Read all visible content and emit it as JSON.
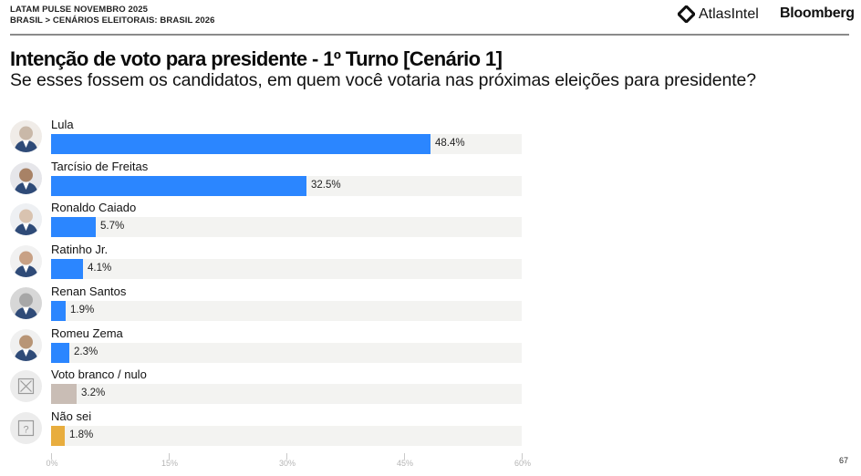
{
  "header": {
    "line1": "LATAM PULSE NOVEMBRO 2025",
    "line2": "BRASIL > CENÁRIOS ELEITORAIS: BRASIL 2026",
    "brand_atlas": "AtlasIntel",
    "brand_bloomberg": "Bloomberg"
  },
  "title": "Intenção de voto para presidente - 1º Turno [Cenário 1]",
  "subtitle": "Se esses fossem os candidatos, em quem você votaria nas próximas eleições para presidente?",
  "page_number": "67",
  "colors": {
    "candidate": "#2b86ff",
    "blank_null": "#c9bdb5",
    "dont_know": "#e8ad3e",
    "track": "#f3f3f1"
  },
  "axis": {
    "ticks": [
      "0%",
      "15%",
      "30%",
      "45%",
      "60%"
    ]
  },
  "rows": [
    {
      "label": "Lula",
      "value_label": "48.4%",
      "icon": "avatar-photo"
    },
    {
      "label": "Tarcísio de Freitas",
      "value_label": "32.5%",
      "icon": "avatar-photo"
    },
    {
      "label": "Ronaldo Caiado",
      "value_label": "5.7%",
      "icon": "avatar-photo"
    },
    {
      "label": "Ratinho Jr.",
      "value_label": "4.1%",
      "icon": "avatar-photo"
    },
    {
      "label": "Renan Santos",
      "value_label": "1.9%",
      "icon": "avatar-photo"
    },
    {
      "label": "Romeu Zema",
      "value_label": "2.3%",
      "icon": "avatar-photo"
    },
    {
      "label": "Voto branco / nulo",
      "value_label": "3.2%",
      "icon": "x-box-icon"
    },
    {
      "label": "Não sei",
      "value_label": "1.8%",
      "icon": "question-box-icon"
    }
  ],
  "chart_data": {
    "type": "bar",
    "orientation": "horizontal",
    "title": "Intenção de voto para presidente - 1º Turno [Cenário 1]",
    "subtitle": "Se esses fossem os candidatos, em quem você votaria nas próximas eleições para presidente?",
    "categories": [
      "Lula",
      "Tarcísio de Freitas",
      "Ronaldo Caiado",
      "Ratinho Jr.",
      "Renan Santos",
      "Romeu Zema",
      "Voto branco / nulo",
      "Não sei"
    ],
    "values": [
      48.4,
      32.5,
      5.7,
      4.1,
      1.9,
      2.3,
      3.2,
      1.8
    ],
    "bar_colors": [
      "#2b86ff",
      "#2b86ff",
      "#2b86ff",
      "#2b86ff",
      "#2b86ff",
      "#2b86ff",
      "#c9bdb5",
      "#e8ad3e"
    ],
    "xlabel": "",
    "ylabel": "",
    "xlim": [
      0,
      60
    ],
    "xticks": [
      "0%",
      "15%",
      "30%",
      "45%",
      "60%"
    ],
    "grid": false,
    "legend": null,
    "value_format": "percent, one decimal"
  }
}
